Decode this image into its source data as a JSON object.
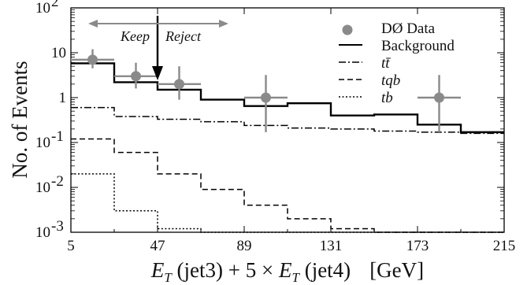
{
  "chart_data": {
    "type": "histogram",
    "xlabel": "E_T (jet3) + 5 × E_T (jet4)   [GeV]",
    "xlabel_parts": {
      "e1": "E",
      "t1": "T",
      "jet3": " (jet3) + 5 × ",
      "e2": "E",
      "t2": "T",
      "jet4": " (jet4)",
      "unit": "[GeV]"
    },
    "ylabel": "No. of Events",
    "xlim": [
      5,
      215
    ],
    "ylim": [
      0.001,
      100
    ],
    "yscale": "log",
    "x_ticks": [
      "5",
      "47",
      "89",
      "131",
      "173",
      "215"
    ],
    "y_ticks": [
      {
        "value": 100,
        "base": "10",
        "exp": "2"
      },
      {
        "value": 10,
        "base": "10",
        "exp": ""
      },
      {
        "value": 1,
        "base": "1",
        "exp": ""
      },
      {
        "value": 0.1,
        "base": "10",
        "exp": "-1"
      },
      {
        "value": 0.01,
        "base": "10",
        "exp": "-2"
      },
      {
        "value": 0.001,
        "base": "10",
        "exp": "-3"
      }
    ],
    "bin_edges": [
      5,
      26,
      47,
      68,
      89,
      110,
      131,
      152,
      173,
      194,
      215
    ],
    "series": [
      {
        "name": "Background",
        "style": "solid",
        "values": [
          5.8,
          2.2,
          1.5,
          0.9,
          0.65,
          0.75,
          0.4,
          0.42,
          0.25,
          0.17
        ]
      },
      {
        "name": "tt̄",
        "style": "dashdot",
        "values": [
          0.6,
          0.38,
          0.33,
          0.29,
          0.24,
          0.21,
          0.2,
          0.18,
          0.17,
          0.16
        ]
      },
      {
        "name": "tqb",
        "style": "dashed",
        "values": [
          0.12,
          0.06,
          0.02,
          0.009,
          0.004,
          0.002,
          0.0012,
          0.001,
          0.001,
          0.001
        ]
      },
      {
        "name": "tb",
        "style": "dotted",
        "values": [
          0.02,
          0.003,
          0.0012,
          0.001,
          0.001,
          0.001,
          0.001,
          0.001,
          0.001,
          0.001
        ]
      }
    ],
    "data_points": {
      "name": "DØ Data",
      "points": [
        {
          "x": 15.5,
          "y": 7,
          "ylo": 4.5,
          "yhi": 12
        },
        {
          "x": 36.5,
          "y": 3,
          "ylo": 1.6,
          "yhi": 6
        },
        {
          "x": 57.5,
          "y": 2,
          "ylo": 0.9,
          "yhi": 5
        },
        {
          "x": 99.5,
          "y": 1,
          "ylo": 0.17,
          "yhi": 3.2
        },
        {
          "x": 183.5,
          "y": 1,
          "ylo": 0.17,
          "yhi": 3.2
        }
      ]
    },
    "cut": {
      "x": 47,
      "keep_label": "Keep",
      "reject_label": "Reject"
    },
    "legend": [
      {
        "label": "DØ Data",
        "marker": "circle"
      },
      {
        "label": "Background",
        "style": "solid"
      },
      {
        "label": "tt̄",
        "style": "dashdot"
      },
      {
        "label": "tqb",
        "style": "dashed"
      },
      {
        "label": "tb",
        "style": "dotted"
      }
    ],
    "colors": {
      "data": "#8a8a8a",
      "lines": "#000000",
      "arrow": "#8a8a8a"
    }
  }
}
